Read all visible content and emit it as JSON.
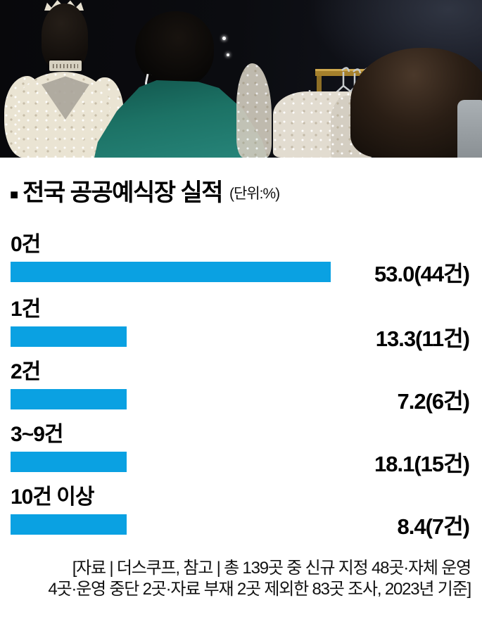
{
  "header": {
    "bullet": "■",
    "title": "전국 공공예식장 실적",
    "unit": "(단위:%)"
  },
  "chart_data": {
    "type": "bar",
    "orientation": "horizontal",
    "title": "전국 공공예식장 실적",
    "unit_label": "(단위:%)",
    "categories": [
      "0건",
      "1건",
      "2건",
      "3~9건",
      "10건 이상"
    ],
    "values": [
      53.0,
      13.3,
      7.2,
      18.1,
      8.4
    ],
    "counts": [
      44,
      11,
      6,
      15,
      7
    ],
    "value_labels": [
      "53.0(44건)",
      "13.3(11건)",
      "7.2(6건)",
      "18.1(15건)",
      "8.4(7건)"
    ],
    "bar_color": "#0aa1e2",
    "xlim": [
      0,
      60
    ],
    "grid": false,
    "legend": "none"
  },
  "footer": {
    "line1": "[자료 | 더스쿠프, 참고 | 총 139곳 중 신규 지정 48곳·자체 운영",
    "line2": "4곳·운영 중단 2곳·자료 부재 2곳 제외한 83곳 조사, 2023년 기준]"
  }
}
